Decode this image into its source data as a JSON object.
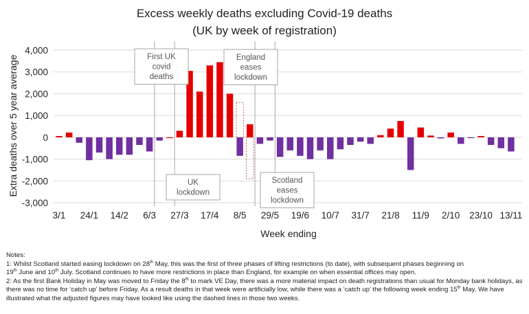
{
  "chart_data": {
    "type": "bar",
    "title": "Excess weekly deaths excluding Covid-19 deaths",
    "subtitle": "(UK by week of registration)",
    "xlabel": "Week ending",
    "ylabel": "Extra deaths over 5 year average",
    "ylim": [
      -3000,
      4000
    ],
    "yticks": [
      4000,
      3000,
      2000,
      1000,
      0,
      -1000,
      -2000,
      -3000
    ],
    "ytick_labels": [
      "4,000",
      "3,000",
      "2,000",
      "1,000",
      "0",
      "-1,000",
      "-2,000",
      "-3,000"
    ],
    "grid": true,
    "xtick_labels": [
      "3/1",
      "24/1",
      "14/2",
      "6/3",
      "27/3",
      "17/4",
      "8/5",
      "29/5",
      "19/6",
      "10/7",
      "31/7",
      "21/8",
      "11/9",
      "2/10",
      "23/10",
      "13/11"
    ],
    "xtick_every": 3,
    "positive_color": "#e50000",
    "negative_color": "#7030a0",
    "values": [
      60,
      220,
      -250,
      -1050,
      -700,
      -1000,
      -800,
      -800,
      -350,
      -650,
      -150,
      0,
      300,
      3050,
      2100,
      3300,
      3450,
      2000,
      -850,
      600,
      -300,
      -150,
      -900,
      -600,
      -850,
      -1000,
      -600,
      -1000,
      -550,
      -350,
      -200,
      -300,
      100,
      400,
      750,
      -1500,
      450,
      80,
      -50,
      220,
      -300,
      -30,
      60,
      -350,
      -500,
      -650
    ],
    "adjusted_dashed": [
      {
        "week_index": 18,
        "value": 1600
      },
      {
        "week_index": 19,
        "value": -1900
      }
    ],
    "annotations": [
      {
        "label": "First UK covid deaths",
        "lines": [
          "First UK",
          "covid",
          "deaths"
        ],
        "week_index": 9.5,
        "position": "top"
      },
      {
        "label": "UK lockdown",
        "lines": [
          "UK",
          "lockdown"
        ],
        "week_index": 11.5,
        "position": "bottom"
      },
      {
        "label": "England eases lockdown",
        "lines": [
          "England",
          "eases",
          "lockdown"
        ],
        "week_index": 19.5,
        "position": "top"
      },
      {
        "label": "Scotland eases lockdown",
        "lines": [
          "Scotland",
          "eases",
          "lockdown"
        ],
        "week_index": 21.5,
        "position": "bottom"
      }
    ]
  },
  "notes": {
    "heading": "Notes:",
    "note1_a": "1: Whilst Scotland started easing lockdown on 28",
    "note1_b": " May, this was the first of three phases of lifting restrictions (to date), with subsequent phases beginning on",
    "note1_c": "19",
    "note1_d": " June and 10",
    "note1_e": " July. Scotland continues to have more restrictions in place than England, for example on when essential offices may open.",
    "note2_a": "2: As the first Bank Holiday in May was moved to Friday the 8",
    "note2_b": " to mark VE Day, there was a more material impact on death registrations than usual for Monday bank holidays, as there was no time for ‘catch up’ before Friday. As a result deaths in that week were artificially low, while there was a ‘catch up’ the following week ending 15",
    "note2_c": " May. We have illustrated what the adjusted figures may have looked like using the dashed lines in those two weeks.",
    "th": "th"
  }
}
